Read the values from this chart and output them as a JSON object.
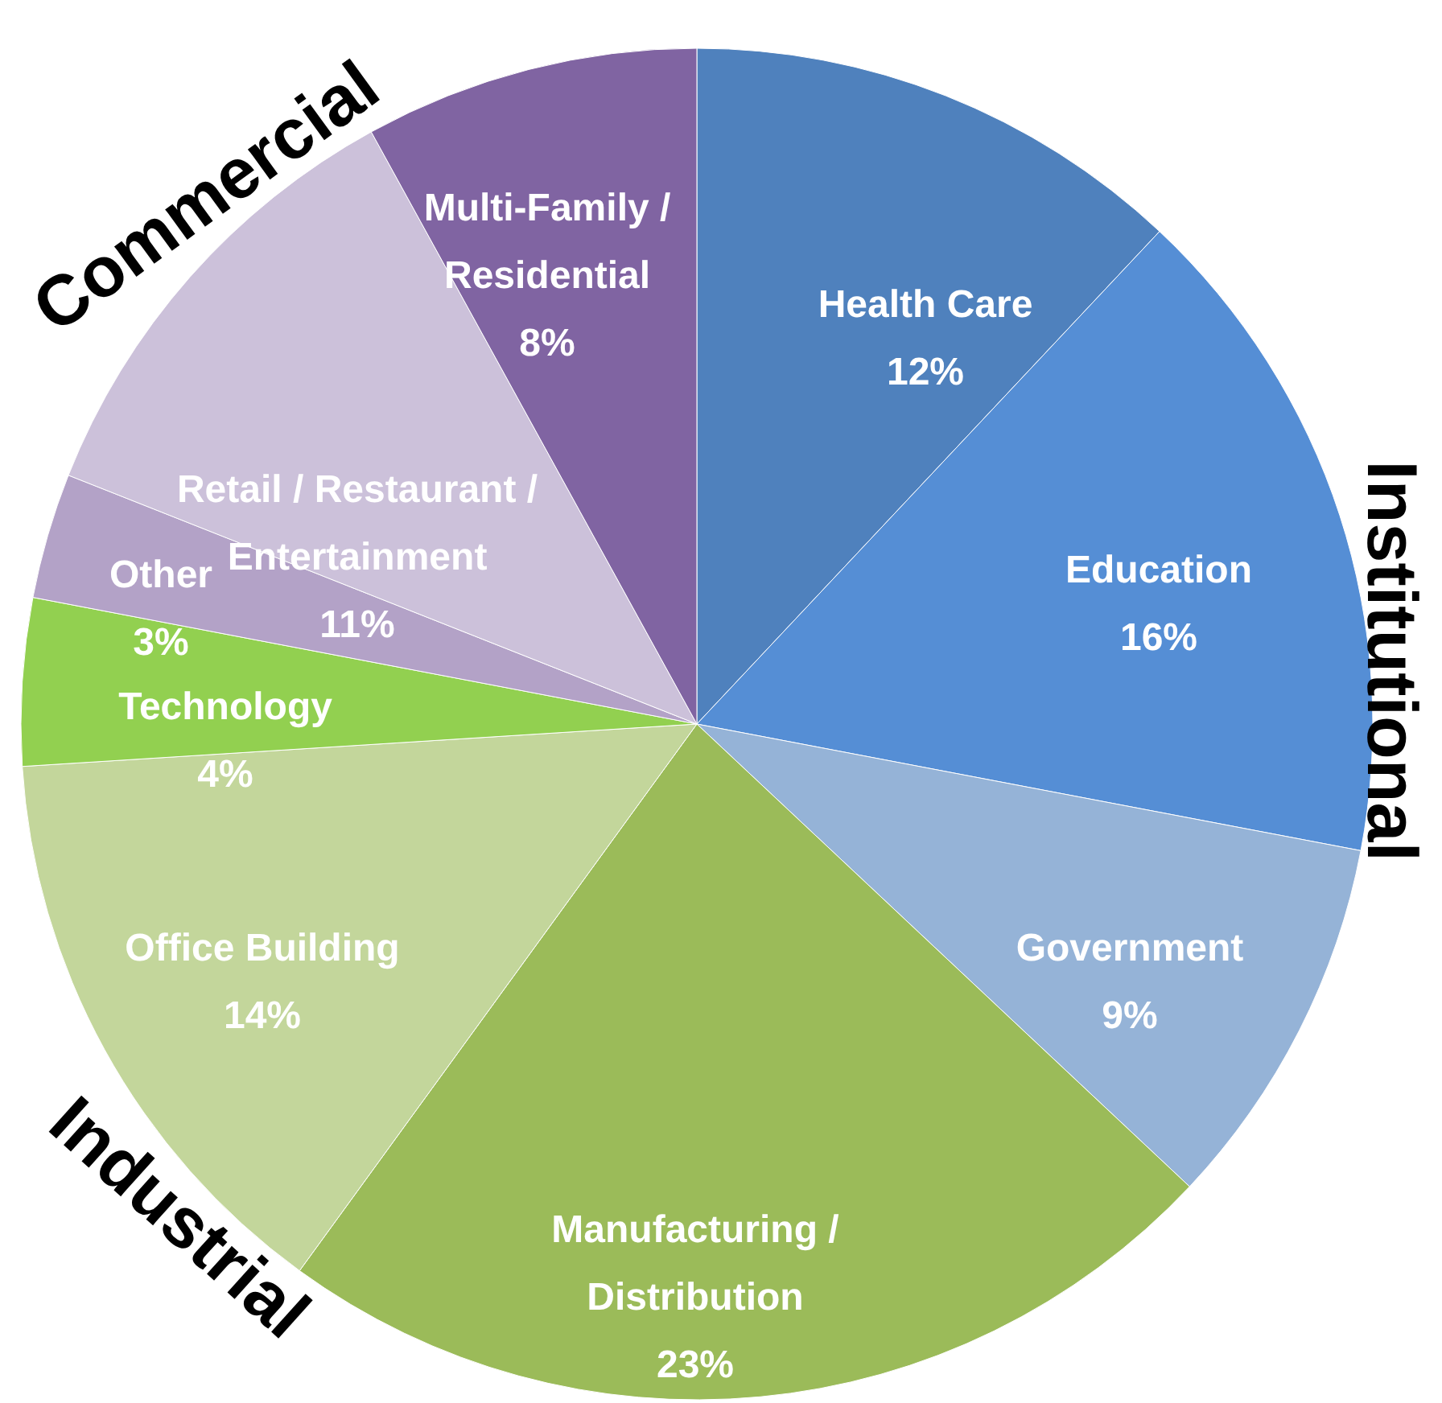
{
  "chart_data": {
    "type": "pie",
    "categories": [
      "Health Care",
      "Education",
      "Government",
      "Manufacturing / Distribution",
      "Office Building",
      "Technology",
      "Other",
      "Retail / Restaurant / Entertainment",
      "Multi-Family / Residential"
    ],
    "values": [
      12,
      16,
      9,
      23,
      14,
      4,
      3,
      11,
      8
    ],
    "colors": [
      "#4f81bd",
      "#558ed5",
      "#95b3d7",
      "#9bbb59",
      "#c3d69b",
      "#92d050",
      "#b3a2c7",
      "#ccc1da",
      "#8064a2"
    ],
    "data_labels": true,
    "value_labels": [
      "12%",
      "16%",
      "9%",
      "23%",
      "14%",
      "4%",
      "3%",
      "11%",
      "8%"
    ],
    "annotations": [
      "Commercial",
      "Institutional",
      "Industrial"
    ]
  }
}
